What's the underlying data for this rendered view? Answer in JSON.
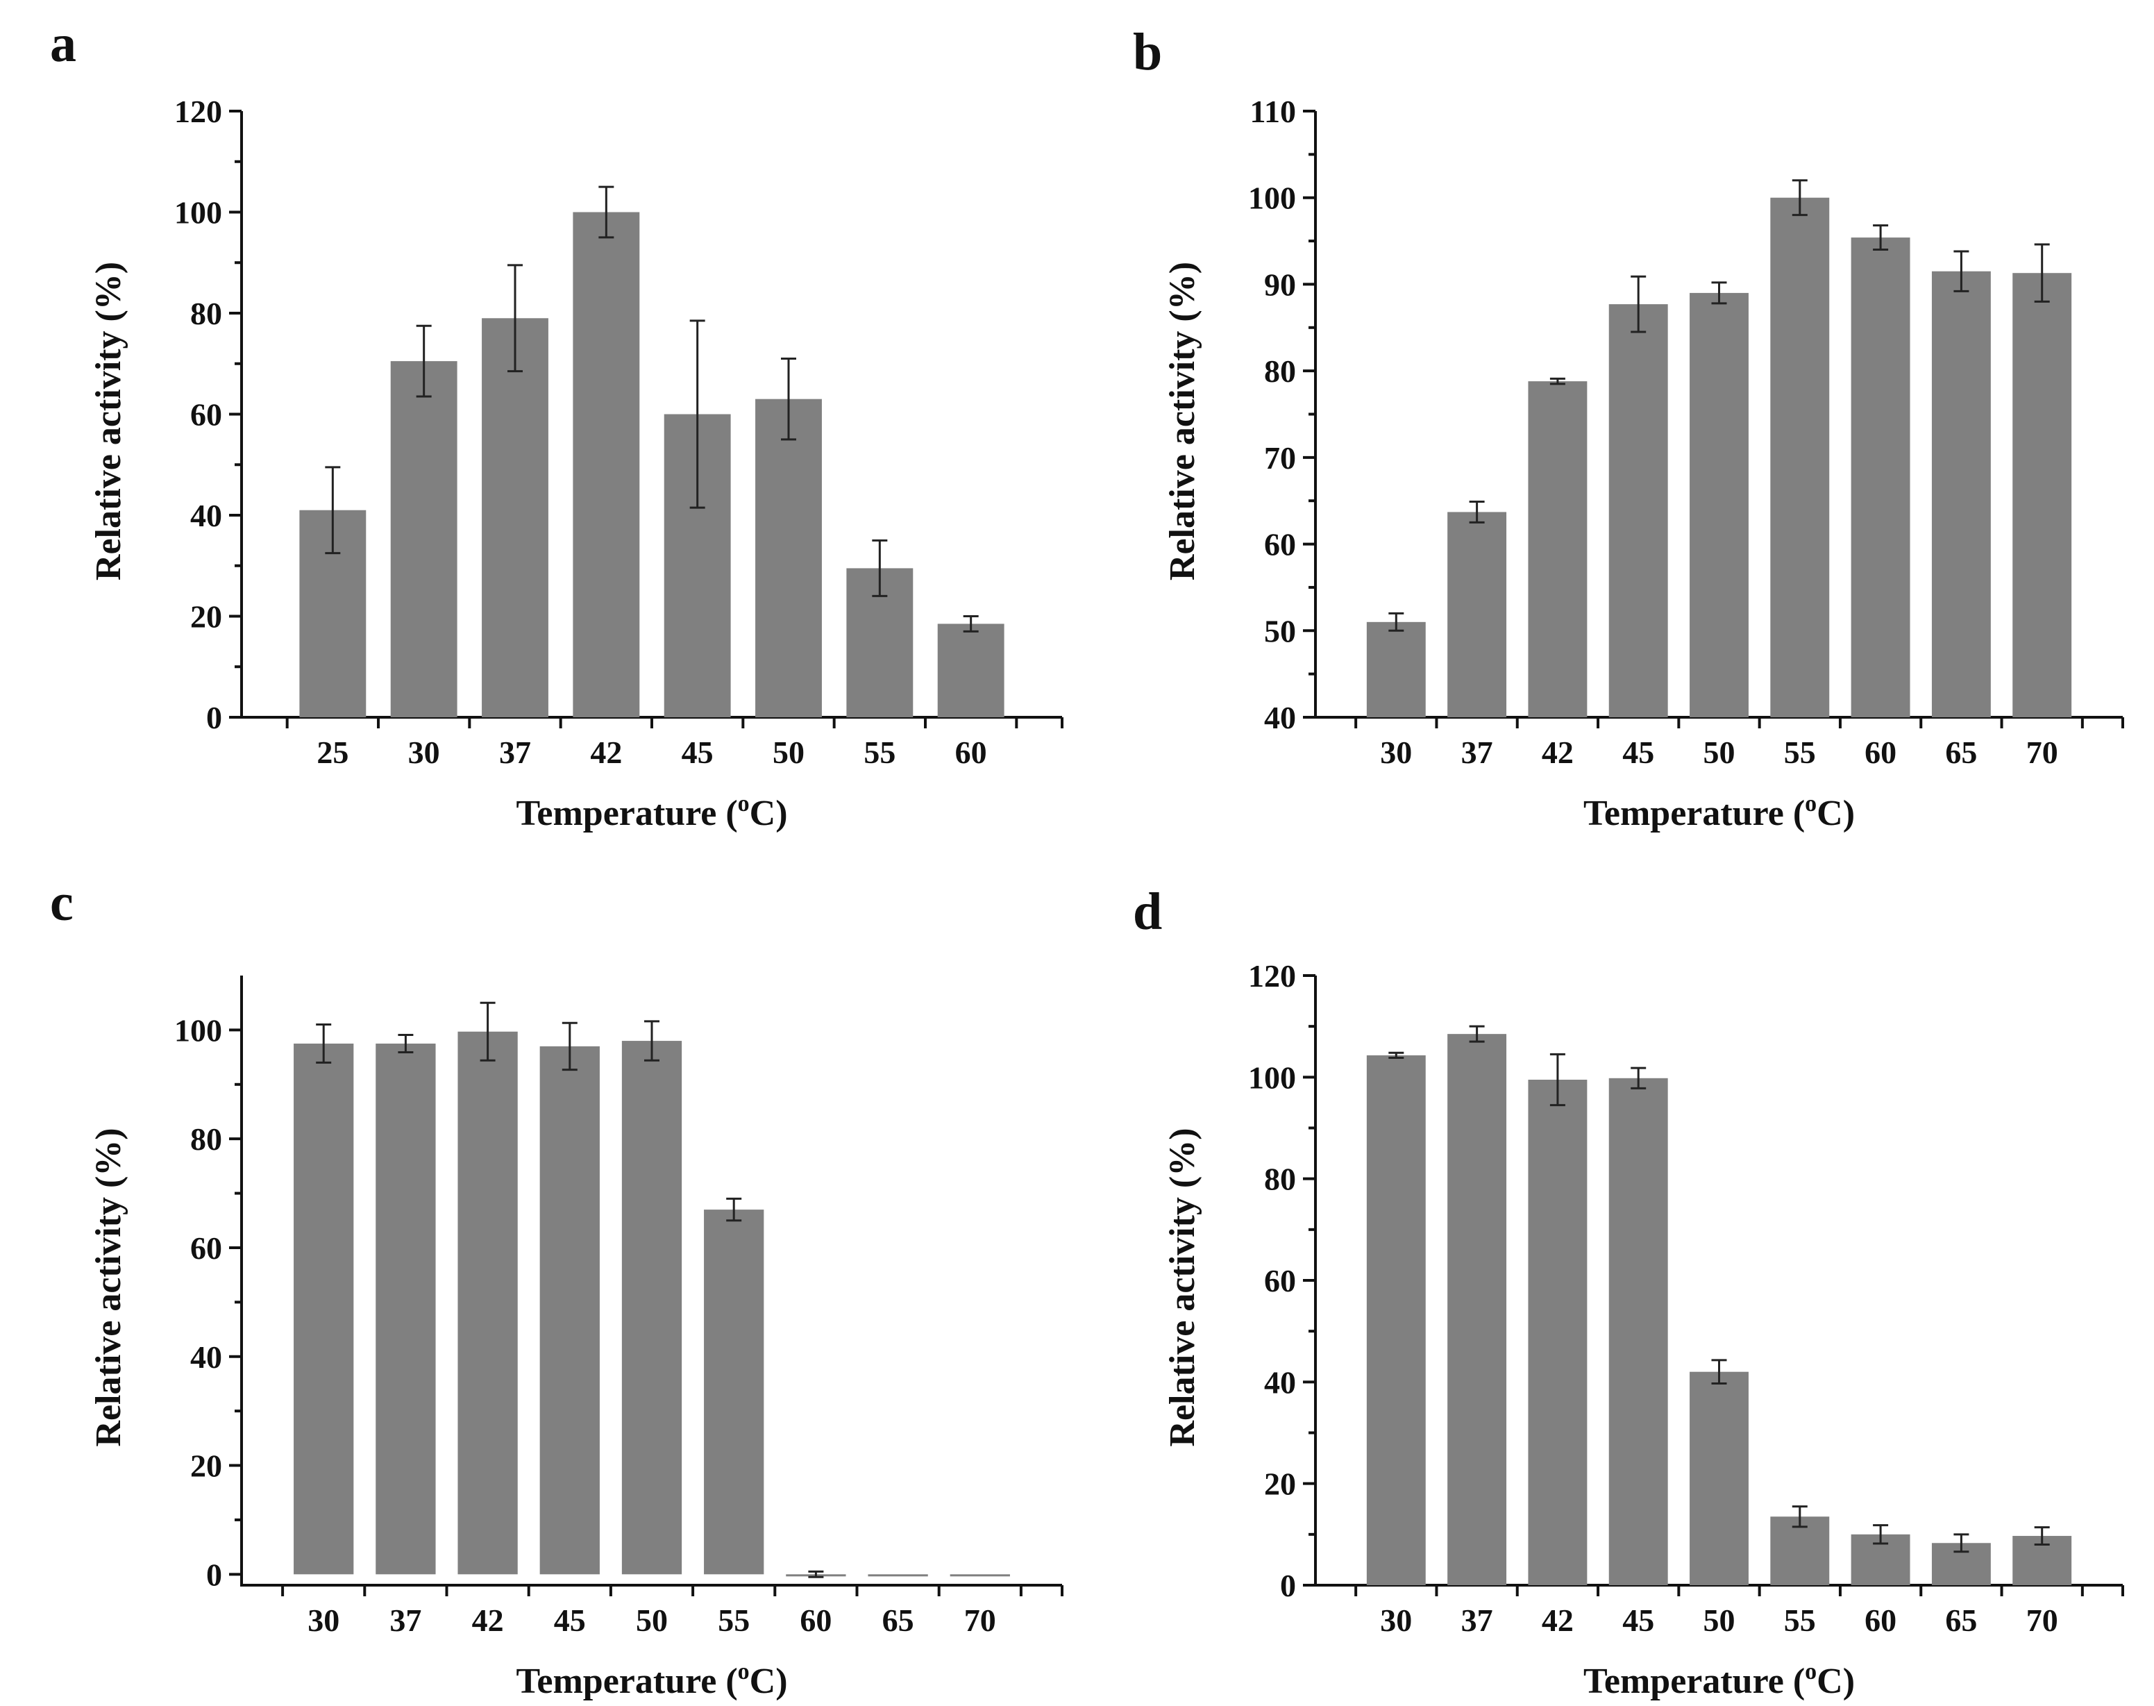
{
  "chart_data": [
    {
      "type": "bar",
      "panel": "a",
      "categories": [
        "25",
        "30",
        "37",
        "42",
        "45",
        "50",
        "55",
        "60"
      ],
      "values": [
        41,
        70.5,
        79,
        100,
        60,
        63,
        29.5,
        18.5
      ],
      "errors": [
        8.5,
        7,
        10.5,
        5,
        18.5,
        8,
        5.5,
        1.5
      ],
      "xlabel": "Temperature (",
      "xlabel_sup": "o",
      "xlabel_end": "C)",
      "ylabel": "Relative activity (%)",
      "ylim": [
        0,
        120
      ],
      "yticks": [
        0,
        20,
        40,
        60,
        80,
        100,
        120
      ],
      "grid": false
    },
    {
      "type": "bar",
      "panel": "b",
      "categories": [
        "30",
        "37",
        "42",
        "45",
        "50",
        "55",
        "60",
        "65",
        "70"
      ],
      "values": [
        51,
        63.7,
        78.8,
        87.7,
        89,
        100,
        95.4,
        91.5,
        91.3
      ],
      "errors": [
        1,
        1.2,
        0.3,
        3.2,
        1.2,
        2,
        1.4,
        2.3,
        3.3
      ],
      "xlabel": "Temperature (",
      "xlabel_sup": "o",
      "xlabel_end": "C)",
      "ylabel": "Relative activity (%)",
      "ylim": [
        40,
        110
      ],
      "yticks": [
        40,
        50,
        60,
        70,
        80,
        90,
        100,
        110
      ],
      "grid": false
    },
    {
      "type": "bar",
      "panel": "c",
      "categories": [
        "30",
        "37",
        "42",
        "45",
        "50",
        "55",
        "60",
        "65",
        "70"
      ],
      "values": [
        97.5,
        97.5,
        99.7,
        97,
        98,
        67,
        0,
        -0.2,
        -0.2
      ],
      "errors": [
        3.5,
        1.6,
        5.3,
        4.3,
        3.6,
        2,
        0.5,
        0,
        0
      ],
      "xlabel": "Temperature (",
      "xlabel_sup": "o",
      "xlabel_end": "C)",
      "ylabel": "Relative activity (%)",
      "ylim": [
        -2,
        110
      ],
      "yticks": [
        0,
        20,
        40,
        60,
        80,
        100
      ],
      "grid": false
    },
    {
      "type": "bar",
      "panel": "d",
      "categories": [
        "30",
        "37",
        "42",
        "45",
        "50",
        "55",
        "60",
        "65",
        "70"
      ],
      "values": [
        104.3,
        108.5,
        99.5,
        99.8,
        42,
        13.5,
        10,
        8.3,
        9.7
      ],
      "errors": [
        0.5,
        1.5,
        5,
        2,
        2.3,
        2,
        1.8,
        1.7,
        1.7
      ],
      "xlabel": "Temperature (",
      "xlabel_sup": "o",
      "xlabel_end": "C)",
      "ylabel": "Relative activity (%)",
      "ylim": [
        0,
        120
      ],
      "yticks": [
        0,
        20,
        40,
        60,
        80,
        100,
        120
      ],
      "grid": false
    }
  ]
}
